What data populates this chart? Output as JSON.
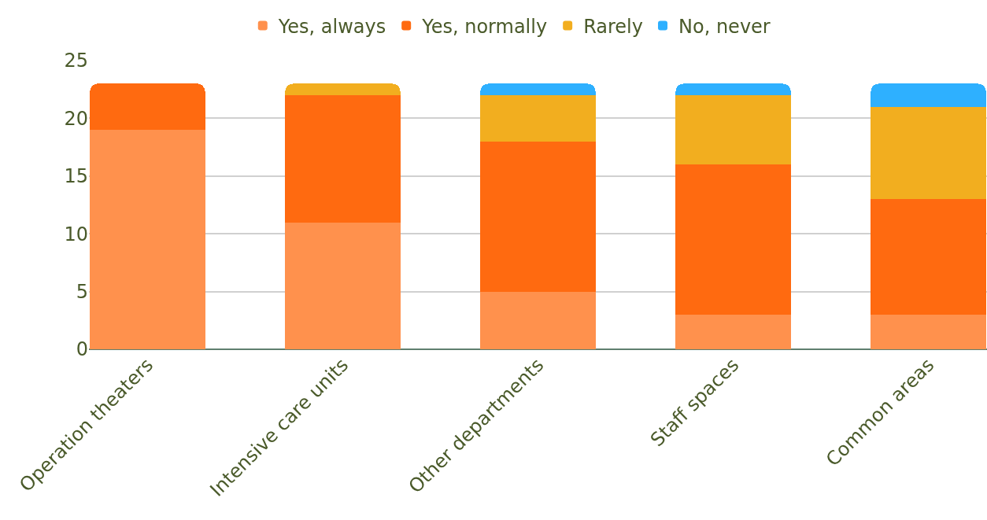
{
  "chart_data": {
    "type": "bar",
    "stacked": true,
    "categories": [
      "Operation theaters",
      "Intensive care units",
      "Other departments",
      "Staff spaces",
      "Common areas"
    ],
    "series": [
      {
        "name": "Yes, always",
        "color": "#ff914d",
        "values": [
          19,
          11,
          5,
          3,
          3
        ]
      },
      {
        "name": "Yes, normally",
        "color": "#ff6a10",
        "values": [
          4,
          11,
          13,
          13,
          10
        ]
      },
      {
        "name": "Rarely",
        "color": "#f2ae1f",
        "values": [
          0,
          1,
          4,
          6,
          8
        ]
      },
      {
        "name": "No, never",
        "color": "#2eb0ff",
        "values": [
          0,
          0,
          1,
          1,
          2
        ]
      }
    ],
    "ylim": [
      0,
      25
    ],
    "yticks": [
      0,
      5,
      10,
      15,
      20,
      25
    ],
    "grid": "y",
    "legend": "top"
  }
}
